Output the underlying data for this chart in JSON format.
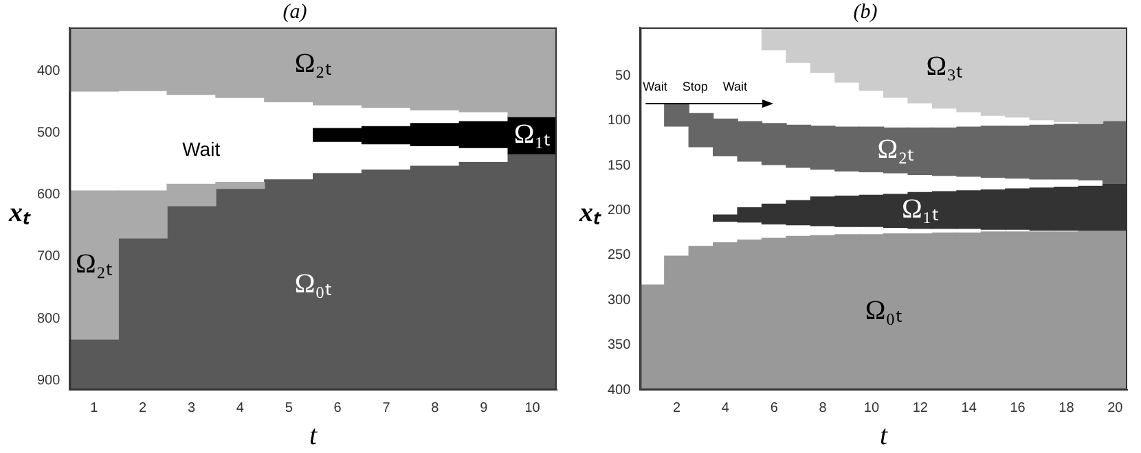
{
  "chart_data": [
    {
      "type": "bar",
      "title": "(a)",
      "xlabel": "t",
      "ylabel": "xₜ",
      "xlim": [
        0.5,
        10.5
      ],
      "xticks": [
        1,
        2,
        3,
        4,
        5,
        6,
        7,
        8,
        9,
        10
      ],
      "ylim": [
        915,
        330
      ],
      "yticks": [
        400,
        500,
        600,
        700,
        800,
        900
      ],
      "x": [
        1,
        2,
        3,
        4,
        5,
        6,
        7,
        8,
        9,
        10
      ],
      "series": [
        {
          "name": "Ω₂ₜ",
          "color": "#aaaaaa",
          "base": [
            330,
            330,
            330,
            330,
            330,
            330,
            330,
            330,
            330,
            330
          ],
          "values": [
            103,
            102,
            108,
            113,
            120,
            125,
            129,
            133,
            136,
            144
          ]
        },
        {
          "name": "Ω₁ₜ",
          "color": "#000000",
          "base": [
            null,
            null,
            null,
            null,
            null,
            493,
            490,
            485,
            482,
            474
          ],
          "values": [
            null,
            null,
            null,
            null,
            null,
            21,
            28,
            36,
            42,
            60
          ]
        },
        {
          "name": "Ω₂ₜ",
          "color": "#aaaaaa",
          "base": [
            594,
            594,
            583,
            580,
            null,
            null,
            null,
            null,
            null,
            null
          ],
          "values": [
            239,
            76,
            35,
            10,
            null,
            null,
            null,
            null,
            null,
            null
          ]
        },
        {
          "name": "Ω₀ₜ",
          "color": "#595959",
          "base": [
            833,
            670,
            618,
            590,
            576,
            566,
            560,
            554,
            548,
            535
          ],
          "values": [
            82,
            245,
            297,
            325,
            339,
            349,
            355,
            361,
            367,
            380
          ]
        }
      ],
      "annotations": [
        "Wait"
      ]
    },
    {
      "type": "bar",
      "title": "(b)",
      "xlabel": "t",
      "ylabel": "xₜ",
      "xlim": [
        0.5,
        20.5
      ],
      "xticks": [
        2,
        4,
        6,
        8,
        10,
        12,
        14,
        16,
        18,
        20
      ],
      "ylim": [
        400,
        -4
      ],
      "yticks": [
        50,
        100,
        150,
        200,
        250,
        300,
        350,
        400
      ],
      "x": [
        1,
        2,
        3,
        4,
        5,
        6,
        7,
        8,
        9,
        10,
        11,
        12,
        13,
        14,
        15,
        16,
        17,
        18,
        19,
        20
      ],
      "series": [
        {
          "name": "Ω₃ₜ",
          "color": "#cccccc",
          "base": [
            null,
            null,
            null,
            null,
            null,
            -4,
            -4,
            -4,
            -4,
            -4,
            -4,
            -4,
            -4,
            -4,
            -4,
            -4,
            -4,
            -4,
            -4,
            -4
          ],
          "values": [
            null,
            null,
            null,
            null,
            null,
            25,
            39,
            50,
            61,
            70,
            78,
            84,
            90,
            94,
            98,
            100,
            103,
            105,
            107,
            104
          ]
        },
        {
          "name": "Ω₂ₜ",
          "color": "#666666",
          "base": [
            null,
            82,
            92,
            98,
            101,
            103,
            105,
            106,
            107,
            107,
            108,
            108,
            108,
            107,
            106,
            106,
            105,
            104,
            104,
            100
          ],
          "values": [
            null,
            24,
            37,
            41,
            44,
            46,
            47,
            48,
            49,
            50,
            50,
            52,
            53,
            55,
            57,
            58,
            60,
            61,
            62,
            70
          ]
        },
        {
          "name": "Ω₁ₜ",
          "color": "#333333",
          "base": [
            null,
            null,
            null,
            205,
            197,
            193,
            189,
            185,
            184,
            183,
            182,
            180,
            179,
            178,
            177,
            176,
            175,
            174,
            173,
            170
          ],
          "values": [
            null,
            null,
            null,
            7,
            16,
            22,
            27,
            32,
            34,
            35,
            37,
            40,
            41,
            42,
            44,
            45,
            47,
            48,
            49,
            52
          ]
        },
        {
          "name": "Ω₀ₜ",
          "color": "#999999",
          "base": [
            283,
            251,
            240,
            236,
            233,
            231,
            229,
            228,
            227,
            227,
            226,
            226,
            225,
            225,
            224,
            224,
            224,
            224,
            223,
            222
          ],
          "values": [
            117,
            149,
            160,
            164,
            167,
            169,
            171,
            172,
            173,
            173,
            174,
            174,
            175,
            175,
            176,
            176,
            176,
            176,
            177,
            178
          ]
        }
      ],
      "annotations": [
        "Wait",
        "Stop",
        "Wait"
      ]
    }
  ]
}
